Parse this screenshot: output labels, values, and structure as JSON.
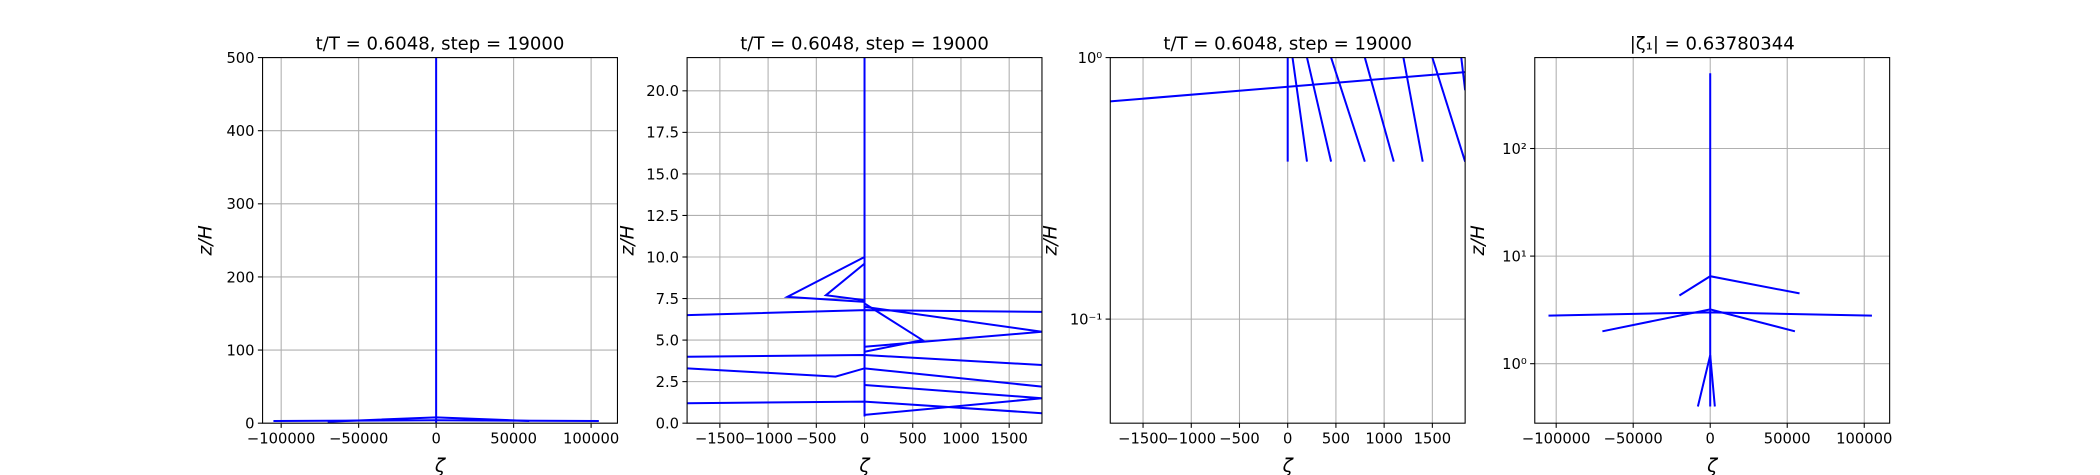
{
  "chart_data": [
    {
      "type": "line",
      "title": "t/T = 0.6048, step = 19000",
      "xlabel": "ζ",
      "ylabel": "z/H",
      "color": "#0000ff",
      "grid": true,
      "yscale": "linear",
      "xlim": [
        -112000,
        117000
      ],
      "ylim": [
        0,
        500
      ],
      "xticks": [
        {
          "value": -100000,
          "label": "−100000"
        },
        {
          "value": -50000,
          "label": "−50000"
        },
        0,
        50000,
        100000
      ],
      "yticks": [
        0,
        100,
        200,
        300,
        400,
        500
      ],
      "series": [
        {
          "x": [
            0,
            0,
            0,
            0
          ],
          "values": [
            0.4,
            10,
            100,
            500
          ]
        },
        {
          "x": [
            -105000,
            0,
            105000
          ],
          "values": [
            3,
            4,
            3
          ]
        },
        {
          "x": [
            -70000,
            0,
            60000
          ],
          "values": [
            2,
            8,
            3
          ]
        }
      ]
    },
    {
      "type": "line",
      "title": "t/T = 0.6048, step = 19000",
      "xlabel": "ζ",
      "ylabel": "z/H",
      "color": "#0000ff",
      "grid": true,
      "yscale": "linear",
      "xlim": [
        -1840,
        1840
      ],
      "ylim": [
        0,
        22
      ],
      "xticks": [
        {
          "value": -1500,
          "label": "−1500"
        },
        {
          "value": -1000,
          "label": "−1000"
        },
        {
          "value": -500,
          "label": "−500"
        },
        0,
        500,
        1000,
        1500
      ],
      "yticks": [
        {
          "value": 0,
          "label": "0.0"
        },
        2.5,
        {
          "value": 5,
          "label": "5.0"
        },
        7.5,
        {
          "value": 10,
          "label": "10.0"
        },
        12.5,
        {
          "value": 15,
          "label": "15.0"
        },
        17.5,
        {
          "value": 20,
          "label": "20.0"
        }
      ],
      "series": [
        {
          "x": [
            0,
            0,
            0,
            0,
            0
          ],
          "values": [
            0.4,
            7,
            10,
            15,
            22
          ]
        },
        {
          "x": [
            -1840,
            0,
            1840
          ],
          "values": [
            6.5,
            6.8,
            6.7
          ]
        },
        {
          "x": [
            0,
            -800,
            0
          ],
          "values": [
            10,
            7.6,
            7.3
          ]
        },
        {
          "x": [
            0,
            -400,
            0
          ],
          "values": [
            9.6,
            7.7,
            7.4
          ]
        },
        {
          "x": [
            -1840,
            0,
            1840
          ],
          "values": [
            4,
            4.1,
            3.5
          ]
        },
        {
          "x": [
            -1840,
            -300,
            0,
            1840
          ],
          "values": [
            3.3,
            2.8,
            3.3,
            2.2
          ]
        },
        {
          "x": [
            -1840,
            0,
            1840
          ],
          "values": [
            1.2,
            1.3,
            0.6
          ]
        },
        {
          "x": [
            0,
            600,
            0
          ],
          "values": [
            7.2,
            5,
            4.3
          ]
        },
        {
          "x": [
            0,
            1840,
            0
          ],
          "values": [
            7,
            5.5,
            4.6
          ]
        },
        {
          "x": [
            0,
            1840,
            0
          ],
          "values": [
            2.3,
            1.5,
            0.5
          ]
        }
      ]
    },
    {
      "type": "line",
      "title": "t/T = 0.6048, step = 19000",
      "xlabel": "ζ",
      "ylabel": "z/H",
      "color": "#0000ff",
      "grid": true,
      "yscale": "log",
      "xlim": [
        -1840,
        1840
      ],
      "ylim": [
        0.04,
        1
      ],
      "xticks": [
        {
          "value": -1500,
          "label": "−1500"
        },
        {
          "value": -1000,
          "label": "−1000"
        },
        {
          "value": -500,
          "label": "−500"
        },
        0,
        500,
        1000,
        1500
      ],
      "yticks": [
        {
          "value": 0.1,
          "label": "10⁻¹"
        },
        {
          "value": 1,
          "label": "10⁰"
        }
      ],
      "series": [
        {
          "x": [
            -1840,
            1840
          ],
          "values": [
            0.68,
            0.88
          ]
        },
        {
          "x": [
            0,
            0
          ],
          "values": [
            1,
            0.4
          ]
        },
        {
          "x": [
            50,
            200
          ],
          "values": [
            1,
            0.4
          ]
        },
        {
          "x": [
            200,
            450
          ],
          "values": [
            1,
            0.4
          ]
        },
        {
          "x": [
            450,
            800
          ],
          "values": [
            1,
            0.4
          ]
        },
        {
          "x": [
            800,
            1100
          ],
          "values": [
            1,
            0.4
          ]
        },
        {
          "x": [
            1200,
            1400
          ],
          "values": [
            1,
            0.4
          ]
        },
        {
          "x": [
            1500,
            1840
          ],
          "values": [
            1,
            0.4
          ]
        },
        {
          "x": [
            1800,
            1840
          ],
          "values": [
            1,
            0.75
          ]
        }
      ]
    },
    {
      "type": "line",
      "title": "|ζ₁| = 0.63780344",
      "xlabel": "ζ",
      "ylabel": "z/H",
      "color": "#0000ff",
      "grid": true,
      "yscale": "log",
      "xlim": [
        -113900,
        116500
      ],
      "ylim": [
        0.28,
        700
      ],
      "xticks": [
        {
          "value": -100000,
          "label": "−100000"
        },
        {
          "value": -50000,
          "label": "−50000"
        },
        0,
        50000,
        100000
      ],
      "yticks": [
        {
          "value": 1,
          "label": "10⁰"
        },
        {
          "value": 10,
          "label": "10¹"
        },
        {
          "value": 100,
          "label": "10²"
        }
      ],
      "series": [
        {
          "x": [
            0,
            0,
            0,
            0
          ],
          "values": [
            0.4,
            1,
            8,
            500
          ]
        },
        {
          "x": [
            -105000,
            0,
            105000
          ],
          "values": [
            2.8,
            3,
            2.8
          ]
        },
        {
          "x": [
            -70000,
            0,
            55000
          ],
          "values": [
            2,
            3.2,
            2
          ]
        },
        {
          "x": [
            -20000,
            0,
            58000
          ],
          "values": [
            4.3,
            6.5,
            4.5
          ]
        },
        {
          "x": [
            -8000,
            0,
            3000
          ],
          "values": [
            0.4,
            1.2,
            0.4
          ]
        }
      ]
    }
  ]
}
